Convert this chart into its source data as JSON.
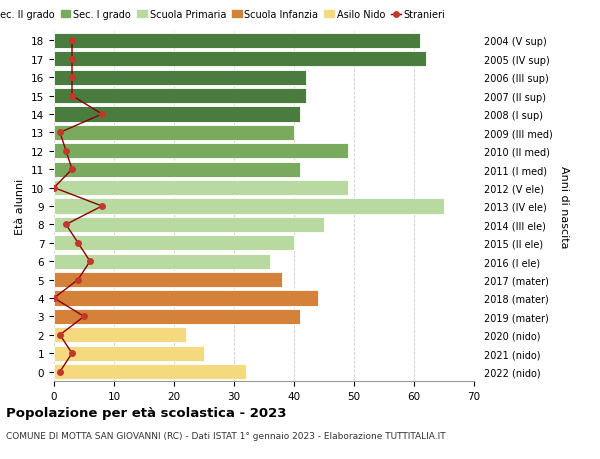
{
  "ages": [
    18,
    17,
    16,
    15,
    14,
    13,
    12,
    11,
    10,
    9,
    8,
    7,
    6,
    5,
    4,
    3,
    2,
    1,
    0
  ],
  "bar_values": [
    61,
    62,
    42,
    42,
    41,
    40,
    49,
    41,
    49,
    65,
    45,
    40,
    36,
    38,
    44,
    41,
    22,
    25,
    32
  ],
  "bar_colors": [
    "#4a7c3f",
    "#4a7c3f",
    "#4a7c3f",
    "#4a7c3f",
    "#4a7c3f",
    "#7aaa5e",
    "#7aaa5e",
    "#7aaa5e",
    "#b8d9a0",
    "#b8d9a0",
    "#b8d9a0",
    "#b8d9a0",
    "#b8d9a0",
    "#d4813a",
    "#d4813a",
    "#d4813a",
    "#f5d97e",
    "#f5d97e",
    "#f5d97e"
  ],
  "stranieri_values": [
    3,
    3,
    3,
    3,
    8,
    1,
    2,
    3,
    0,
    8,
    2,
    4,
    6,
    4,
    0,
    5,
    1,
    3,
    1
  ],
  "right_labels": [
    "2004 (V sup)",
    "2005 (IV sup)",
    "2006 (III sup)",
    "2007 (II sup)",
    "2008 (I sup)",
    "2009 (III med)",
    "2010 (II med)",
    "2011 (I med)",
    "2012 (V ele)",
    "2013 (IV ele)",
    "2014 (III ele)",
    "2015 (II ele)",
    "2016 (I ele)",
    "2017 (mater)",
    "2018 (mater)",
    "2019 (mater)",
    "2020 (nido)",
    "2021 (nido)",
    "2022 (nido)"
  ],
  "legend_labels": [
    "Sec. II grado",
    "Sec. I grado",
    "Scuola Primaria",
    "Scuola Infanzia",
    "Asilo Nido",
    "Stranieri"
  ],
  "legend_colors": [
    "#4a7c3f",
    "#7aaa5e",
    "#b8d9a0",
    "#d4813a",
    "#f5d97e",
    "#c0392b"
  ],
  "ylabel_left": "Età alunni",
  "ylabel_right": "Anni di nascita",
  "title": "Popolazione per età scolastica - 2023",
  "subtitle": "COMUNE DI MOTTA SAN GIOVANNI (RC) - Dati ISTAT 1° gennaio 2023 - Elaborazione TUTTITALIA.IT",
  "xlim": [
    0,
    70
  ],
  "xticks": [
    0,
    10,
    20,
    30,
    40,
    50,
    60,
    70
  ],
  "stranieri_color": "#c0392b",
  "stranieri_line_color": "#8b0000",
  "bg_color": "#ffffff",
  "grid_color": "#cccccc"
}
